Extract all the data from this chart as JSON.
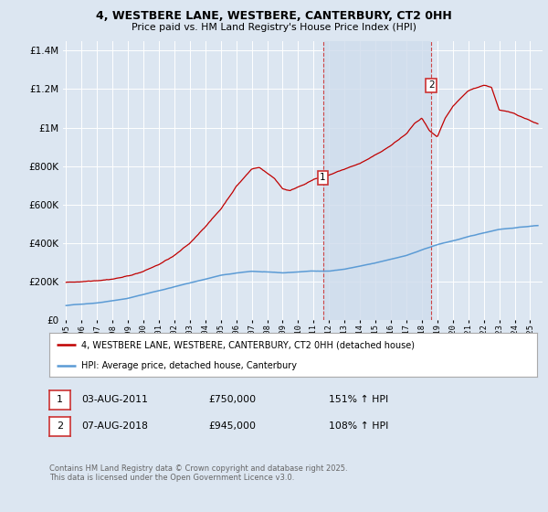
{
  "title": "4, WESTBERE LANE, WESTBERE, CANTERBURY, CT2 0HH",
  "subtitle": "Price paid vs. HM Land Registry's House Price Index (HPI)",
  "background_color": "#dce6f1",
  "plot_bg_color": "#dce6f1",
  "grid_color": "#ffffff",
  "legend_label_red": "4, WESTBERE LANE, WESTBERE, CANTERBURY, CT2 0HH (detached house)",
  "legend_label_blue": "HPI: Average price, detached house, Canterbury",
  "annotation1_label": "1",
  "annotation1_date": "03-AUG-2011",
  "annotation1_price": "£750,000",
  "annotation1_hpi": "151% ↑ HPI",
  "annotation2_label": "2",
  "annotation2_date": "07-AUG-2018",
  "annotation2_price": "£945,000",
  "annotation2_hpi": "108% ↑ HPI",
  "footer": "Contains HM Land Registry data © Crown copyright and database right 2025.\nThis data is licensed under the Open Government Licence v3.0.",
  "vline1_x": 2011.6,
  "vline2_x": 2018.6,
  "shade_color": "#cfdcec",
  "ylim": [
    0,
    1450000
  ],
  "xlim_start": 1994.8,
  "xlim_end": 2025.8
}
